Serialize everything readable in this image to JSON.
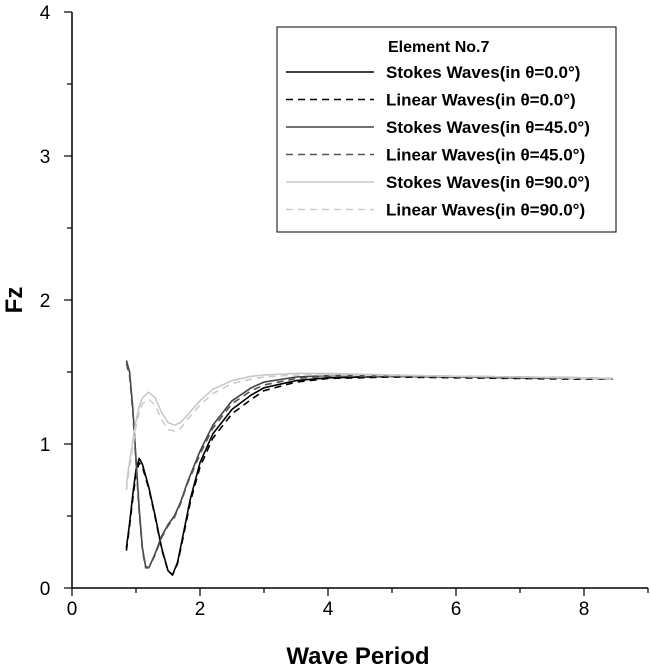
{
  "chart_data": {
    "type": "line",
    "xlabel": "Wave Period",
    "ylabel": "Fz",
    "xlim": [
      0,
      9
    ],
    "ylim": [
      0,
      4
    ],
    "x_ticks": [
      0,
      2,
      4,
      6,
      8
    ],
    "y_ticks": [
      0,
      1,
      2,
      3,
      4
    ],
    "grid": false,
    "legend_placement": "top-right",
    "legend_title": "Element No.7",
    "series": [
      {
        "name": "Stokes Waves(in θ=0.0°)",
        "color": "#000000",
        "dash": "solid",
        "points": [
          [
            0.85,
            0.28
          ],
          [
            0.9,
            0.45
          ],
          [
            0.95,
            0.65
          ],
          [
            1.0,
            0.82
          ],
          [
            1.05,
            0.9
          ],
          [
            1.1,
            0.86
          ],
          [
            1.2,
            0.7
          ],
          [
            1.3,
            0.5
          ],
          [
            1.4,
            0.28
          ],
          [
            1.5,
            0.12
          ],
          [
            1.57,
            0.09
          ],
          [
            1.65,
            0.18
          ],
          [
            1.75,
            0.4
          ],
          [
            1.85,
            0.62
          ],
          [
            2.0,
            0.87
          ],
          [
            2.2,
            1.07
          ],
          [
            2.5,
            1.24
          ],
          [
            2.8,
            1.34
          ],
          [
            3.0,
            1.39
          ],
          [
            3.5,
            1.44
          ],
          [
            4.0,
            1.46
          ],
          [
            5.0,
            1.47
          ],
          [
            6.0,
            1.465
          ],
          [
            7.0,
            1.46
          ],
          [
            8.0,
            1.455
          ],
          [
            8.45,
            1.45
          ]
        ]
      },
      {
        "name": "Linear Waves(in θ=0.0°)",
        "color": "#000000",
        "dash": "dashed",
        "points": [
          [
            0.85,
            0.26
          ],
          [
            0.9,
            0.43
          ],
          [
            0.95,
            0.62
          ],
          [
            1.0,
            0.79
          ],
          [
            1.05,
            0.87
          ],
          [
            1.1,
            0.84
          ],
          [
            1.2,
            0.69
          ],
          [
            1.3,
            0.49
          ],
          [
            1.4,
            0.27
          ],
          [
            1.5,
            0.12
          ],
          [
            1.57,
            0.09
          ],
          [
            1.65,
            0.17
          ],
          [
            1.75,
            0.38
          ],
          [
            1.85,
            0.6
          ],
          [
            2.0,
            0.84
          ],
          [
            2.2,
            1.04
          ],
          [
            2.5,
            1.21
          ],
          [
            2.8,
            1.31
          ],
          [
            3.0,
            1.37
          ],
          [
            3.5,
            1.43
          ],
          [
            4.0,
            1.455
          ],
          [
            5.0,
            1.465
          ],
          [
            6.0,
            1.46
          ],
          [
            7.0,
            1.455
          ],
          [
            8.0,
            1.45
          ],
          [
            8.45,
            1.45
          ]
        ]
      },
      {
        "name": "Stokes Waves(in θ=45.0°)",
        "color": "#444444",
        "dash": "solid",
        "points": [
          [
            0.85,
            1.58
          ],
          [
            0.9,
            1.5
          ],
          [
            0.95,
            1.25
          ],
          [
            1.0,
            0.9
          ],
          [
            1.05,
            0.55
          ],
          [
            1.1,
            0.28
          ],
          [
            1.15,
            0.15
          ],
          [
            1.2,
            0.14
          ],
          [
            1.3,
            0.24
          ],
          [
            1.4,
            0.36
          ],
          [
            1.5,
            0.44
          ],
          [
            1.6,
            0.5
          ],
          [
            1.7,
            0.6
          ],
          [
            1.8,
            0.73
          ],
          [
            2.0,
            0.95
          ],
          [
            2.2,
            1.13
          ],
          [
            2.5,
            1.3
          ],
          [
            2.8,
            1.39
          ],
          [
            3.0,
            1.43
          ],
          [
            3.5,
            1.465
          ],
          [
            4.0,
            1.475
          ],
          [
            5.0,
            1.475
          ],
          [
            6.0,
            1.47
          ],
          [
            7.0,
            1.465
          ],
          [
            8.0,
            1.46
          ],
          [
            8.45,
            1.455
          ]
        ]
      },
      {
        "name": "Linear Waves(in θ=45.0°)",
        "color": "#555555",
        "dash": "dashed",
        "points": [
          [
            0.85,
            1.56
          ],
          [
            0.9,
            1.47
          ],
          [
            0.95,
            1.22
          ],
          [
            1.0,
            0.87
          ],
          [
            1.05,
            0.52
          ],
          [
            1.1,
            0.26
          ],
          [
            1.15,
            0.14
          ],
          [
            1.2,
            0.14
          ],
          [
            1.3,
            0.23
          ],
          [
            1.4,
            0.35
          ],
          [
            1.5,
            0.43
          ],
          [
            1.6,
            0.49
          ],
          [
            1.7,
            0.59
          ],
          [
            1.8,
            0.72
          ],
          [
            2.0,
            0.93
          ],
          [
            2.2,
            1.11
          ],
          [
            2.5,
            1.28
          ],
          [
            2.8,
            1.37
          ],
          [
            3.0,
            1.41
          ],
          [
            3.5,
            1.455
          ],
          [
            4.0,
            1.47
          ],
          [
            5.0,
            1.47
          ],
          [
            6.0,
            1.465
          ],
          [
            7.0,
            1.46
          ],
          [
            8.0,
            1.455
          ],
          [
            8.45,
            1.45
          ]
        ]
      },
      {
        "name": "Stokes Waves(in θ=90.0°)",
        "color": "#c8c8c8",
        "dash": "solid",
        "points": [
          [
            0.85,
            0.72
          ],
          [
            0.9,
            0.88
          ],
          [
            0.95,
            1.02
          ],
          [
            1.0,
            1.16
          ],
          [
            1.05,
            1.26
          ],
          [
            1.1,
            1.32
          ],
          [
            1.2,
            1.36
          ],
          [
            1.3,
            1.32
          ],
          [
            1.4,
            1.22
          ],
          [
            1.5,
            1.15
          ],
          [
            1.6,
            1.13
          ],
          [
            1.7,
            1.15
          ],
          [
            1.8,
            1.2
          ],
          [
            2.0,
            1.3
          ],
          [
            2.2,
            1.38
          ],
          [
            2.5,
            1.44
          ],
          [
            2.8,
            1.47
          ],
          [
            3.0,
            1.48
          ],
          [
            3.5,
            1.49
          ],
          [
            4.0,
            1.49
          ],
          [
            5.0,
            1.48
          ],
          [
            6.0,
            1.47
          ],
          [
            7.0,
            1.465
          ],
          [
            8.0,
            1.46
          ],
          [
            8.45,
            1.455
          ]
        ]
      },
      {
        "name": "Linear Waves(in θ=90.0°)",
        "color": "#cccccc",
        "dash": "dashed",
        "points": [
          [
            0.85,
            0.68
          ],
          [
            0.9,
            0.84
          ],
          [
            0.95,
            0.98
          ],
          [
            1.0,
            1.12
          ],
          [
            1.05,
            1.22
          ],
          [
            1.1,
            1.28
          ],
          [
            1.2,
            1.31
          ],
          [
            1.3,
            1.27
          ],
          [
            1.4,
            1.17
          ],
          [
            1.5,
            1.1
          ],
          [
            1.6,
            1.09
          ],
          [
            1.7,
            1.11
          ],
          [
            1.8,
            1.17
          ],
          [
            2.0,
            1.27
          ],
          [
            2.2,
            1.35
          ],
          [
            2.5,
            1.42
          ],
          [
            2.8,
            1.45
          ],
          [
            3.0,
            1.465
          ],
          [
            3.5,
            1.48
          ],
          [
            4.0,
            1.48
          ],
          [
            5.0,
            1.475
          ],
          [
            6.0,
            1.47
          ],
          [
            7.0,
            1.465
          ],
          [
            8.0,
            1.455
          ],
          [
            8.45,
            1.45
          ]
        ]
      }
    ]
  }
}
